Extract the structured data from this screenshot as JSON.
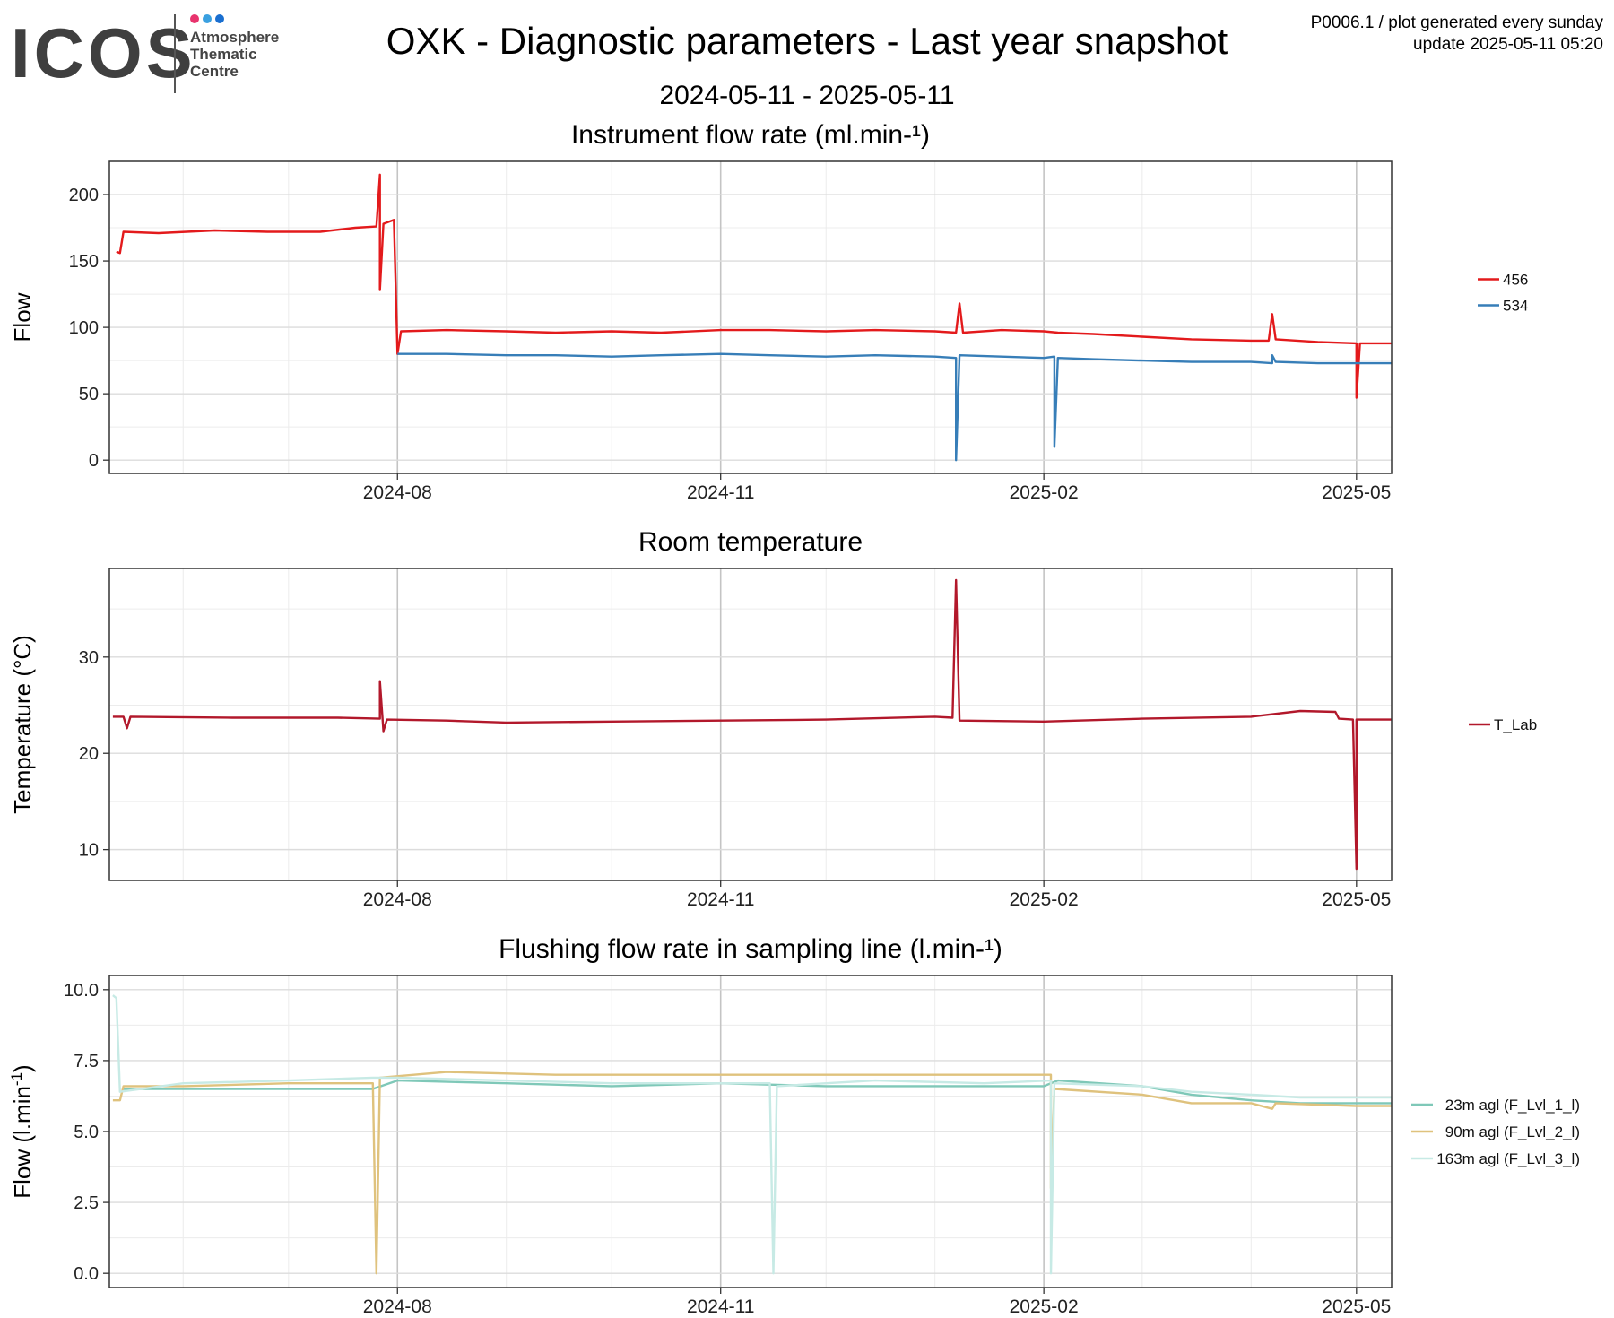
{
  "logo": {
    "word": "ICOS",
    "subtitle": [
      "Atmosphere",
      "Thematic",
      "Centre"
    ],
    "dot_colors": [
      "#e8336d",
      "#3aa0e0",
      "#1a6fd0"
    ]
  },
  "header": {
    "title": "OXK - Diagnostic parameters - Last year snapshot",
    "date_range": "2024-05-11 - 2025-05-11",
    "meta_line1": "P0006.1 / plot generated every sunday",
    "meta_line2": "update  2025-05-11 05:20"
  },
  "chart_data": [
    {
      "type": "line",
      "title": "Instrument flow rate (ml.min-¹)",
      "xlabel": "",
      "ylabel": "Flow",
      "xlim": [
        "2024-05-11",
        "2025-05-11"
      ],
      "ylim": [
        -10,
        225
      ],
      "yticks": [
        0,
        50,
        100,
        150,
        200
      ],
      "xticks": [
        "2024-08-01",
        "2024-11-01",
        "2025-02-01",
        "2025-05-01"
      ],
      "xtick_labels": [
        "2024-08",
        "2024-11",
        "2025-02",
        "2025-05"
      ],
      "grid": true,
      "legend": "right",
      "series": [
        {
          "name": "456",
          "color": "#e31a1c",
          "points": [
            [
              "2024-05-13",
              157
            ],
            [
              "2024-05-14",
              156
            ],
            [
              "2024-05-15",
              172
            ],
            [
              "2024-05-25",
              171
            ],
            [
              "2024-06-10",
              173
            ],
            [
              "2024-06-25",
              172
            ],
            [
              "2024-07-10",
              172
            ],
            [
              "2024-07-20",
              175
            ],
            [
              "2024-07-26",
              176
            ],
            [
              "2024-07-27",
              215
            ],
            [
              "2024-07-27",
              128
            ],
            [
              "2024-07-28",
              178
            ],
            [
              "2024-07-31",
              181
            ],
            [
              "2024-08-01",
              80
            ],
            [
              "2024-08-02",
              97
            ],
            [
              "2024-08-15",
              98
            ],
            [
              "2024-09-01",
              97
            ],
            [
              "2024-09-15",
              96
            ],
            [
              "2024-10-01",
              97
            ],
            [
              "2024-10-15",
              96
            ],
            [
              "2024-11-01",
              98
            ],
            [
              "2024-11-15",
              98
            ],
            [
              "2024-12-01",
              97
            ],
            [
              "2024-12-15",
              98
            ],
            [
              "2025-01-01",
              97
            ],
            [
              "2025-01-07",
              96
            ],
            [
              "2025-01-08",
              118
            ],
            [
              "2025-01-09",
              96
            ],
            [
              "2025-01-20",
              98
            ],
            [
              "2025-02-01",
              97
            ],
            [
              "2025-02-05",
              96
            ],
            [
              "2025-02-15",
              95
            ],
            [
              "2025-03-01",
              93
            ],
            [
              "2025-03-15",
              91
            ],
            [
              "2025-04-01",
              90
            ],
            [
              "2025-04-06",
              90
            ],
            [
              "2025-04-07",
              110
            ],
            [
              "2025-04-08",
              91
            ],
            [
              "2025-04-20",
              89
            ],
            [
              "2025-05-01",
              88
            ],
            [
              "2025-05-01",
              47
            ],
            [
              "2025-05-02",
              88
            ],
            [
              "2025-05-11",
              88
            ]
          ]
        },
        {
          "name": "534",
          "color": "#377eb8",
          "points": [
            [
              "2024-08-01",
              80
            ],
            [
              "2024-08-15",
              80
            ],
            [
              "2024-09-01",
              79
            ],
            [
              "2024-09-15",
              79
            ],
            [
              "2024-10-01",
              78
            ],
            [
              "2024-10-15",
              79
            ],
            [
              "2024-11-01",
              80
            ],
            [
              "2024-11-15",
              79
            ],
            [
              "2024-12-01",
              78
            ],
            [
              "2024-12-15",
              79
            ],
            [
              "2025-01-01",
              78
            ],
            [
              "2025-01-07",
              77
            ],
            [
              "2025-01-07",
              0
            ],
            [
              "2025-01-08",
              79
            ],
            [
              "2025-01-20",
              78
            ],
            [
              "2025-02-01",
              77
            ],
            [
              "2025-02-04",
              78
            ],
            [
              "2025-02-04",
              10
            ],
            [
              "2025-02-05",
              77
            ],
            [
              "2025-02-15",
              76
            ],
            [
              "2025-03-01",
              75
            ],
            [
              "2025-03-15",
              74
            ],
            [
              "2025-04-01",
              74
            ],
            [
              "2025-04-07",
              73
            ],
            [
              "2025-04-07",
              79
            ],
            [
              "2025-04-08",
              74
            ],
            [
              "2025-04-20",
              73
            ],
            [
              "2025-05-01",
              73
            ],
            [
              "2025-05-11",
              73
            ]
          ]
        }
      ]
    },
    {
      "type": "line",
      "title": "Room temperature",
      "xlabel": "",
      "ylabel": "Temperature (°C)",
      "xlim": [
        "2024-05-11",
        "2025-05-11"
      ],
      "ylim": [
        6.8,
        39.2
      ],
      "yticks": [
        10,
        20,
        30
      ],
      "xticks": [
        "2024-08-01",
        "2024-11-01",
        "2025-02-01",
        "2025-05-01"
      ],
      "xtick_labels": [
        "2024-08",
        "2024-11",
        "2025-02",
        "2025-05"
      ],
      "grid": true,
      "legend": "right",
      "series": [
        {
          "name": "T_Lab",
          "color": "#b2182b",
          "points": [
            [
              "2024-05-12",
              23.8
            ],
            [
              "2024-05-15",
              23.8
            ],
            [
              "2024-05-16",
              22.6
            ],
            [
              "2024-05-17",
              23.8
            ],
            [
              "2024-06-15",
              23.7
            ],
            [
              "2024-07-15",
              23.7
            ],
            [
              "2024-07-27",
              23.6
            ],
            [
              "2024-07-27",
              27.5
            ],
            [
              "2024-07-28",
              22.3
            ],
            [
              "2024-07-29",
              23.5
            ],
            [
              "2024-08-15",
              23.4
            ],
            [
              "2024-09-01",
              23.2
            ],
            [
              "2024-10-01",
              23.3
            ],
            [
              "2024-11-01",
              23.4
            ],
            [
              "2024-12-01",
              23.5
            ],
            [
              "2025-01-01",
              23.8
            ],
            [
              "2025-01-06",
              23.7
            ],
            [
              "2025-01-07",
              38.0
            ],
            [
              "2025-01-08",
              23.4
            ],
            [
              "2025-02-01",
              23.3
            ],
            [
              "2025-03-01",
              23.6
            ],
            [
              "2025-04-01",
              23.8
            ],
            [
              "2025-04-15",
              24.4
            ],
            [
              "2025-04-25",
              24.3
            ],
            [
              "2025-04-26",
              23.6
            ],
            [
              "2025-04-30",
              23.5
            ],
            [
              "2025-05-01",
              8.0
            ],
            [
              "2025-05-01",
              23.5
            ],
            [
              "2025-05-11",
              23.5
            ]
          ]
        }
      ]
    },
    {
      "type": "line",
      "title": "Flushing flow rate in sampling line (l.min-¹)",
      "xlabel": "",
      "ylabel": "Flow (l.min-1)",
      "xlim": [
        "2024-05-11",
        "2025-05-11"
      ],
      "ylim": [
        -0.5,
        10.5
      ],
      "yticks": [
        0.0,
        2.5,
        5.0,
        7.5,
        10.0
      ],
      "ytick_labels": [
        "0.0",
        "2.5",
        "5.0",
        "7.5",
        "10.0"
      ],
      "xticks": [
        "2024-08-01",
        "2024-11-01",
        "2025-02-01",
        "2025-05-01"
      ],
      "xtick_labels": [
        "2024-08",
        "2024-11",
        "2025-02",
        "2025-05"
      ],
      "grid": true,
      "legend": "right",
      "series": [
        {
          "name": "23m agl (F_Lvl_1_l)",
          "color": "#7fc8b8",
          "points": [
            [
              "2024-05-15",
              6.5
            ],
            [
              "2024-06-01",
              6.5
            ],
            [
              "2024-07-01",
              6.5
            ],
            [
              "2024-07-25",
              6.5
            ],
            [
              "2024-08-01",
              6.8
            ],
            [
              "2024-09-01",
              6.7
            ],
            [
              "2024-10-01",
              6.6
            ],
            [
              "2024-11-01",
              6.7
            ],
            [
              "2024-12-01",
              6.6
            ],
            [
              "2025-01-01",
              6.6
            ],
            [
              "2025-02-01",
              6.6
            ],
            [
              "2025-02-05",
              6.8
            ],
            [
              "2025-03-01",
              6.6
            ],
            [
              "2025-03-15",
              6.3
            ],
            [
              "2025-04-01",
              6.1
            ],
            [
              "2025-04-15",
              6.0
            ],
            [
              "2025-05-01",
              6.0
            ],
            [
              "2025-05-11",
              6.0
            ]
          ]
        },
        {
          "name": "90m agl (F_Lvl_2_l)",
          "color": "#dfc27d",
          "points": [
            [
              "2024-05-12",
              6.1
            ],
            [
              "2024-05-14",
              6.1
            ],
            [
              "2024-05-15",
              6.6
            ],
            [
              "2024-06-01",
              6.6
            ],
            [
              "2024-07-01",
              6.7
            ],
            [
              "2024-07-25",
              6.7
            ],
            [
              "2024-07-26",
              0.0
            ],
            [
              "2024-07-27",
              6.9
            ],
            [
              "2024-08-15",
              7.1
            ],
            [
              "2024-09-15",
              7.0
            ],
            [
              "2024-10-15",
              7.0
            ],
            [
              "2024-11-15",
              7.0
            ],
            [
              "2024-12-15",
              7.0
            ],
            [
              "2025-01-15",
              7.0
            ],
            [
              "2025-02-03",
              7.0
            ],
            [
              "2025-02-03",
              3.0
            ],
            [
              "2025-02-04",
              6.5
            ],
            [
              "2025-03-01",
              6.3
            ],
            [
              "2025-03-15",
              6.0
            ],
            [
              "2025-04-01",
              6.0
            ],
            [
              "2025-04-07",
              5.8
            ],
            [
              "2025-04-08",
              6.0
            ],
            [
              "2025-05-01",
              5.9
            ],
            [
              "2025-05-11",
              5.9
            ]
          ]
        },
        {
          "name": "163m agl (F_Lvl_3_l)",
          "color": "#c7eae5",
          "points": [
            [
              "2024-05-12",
              9.8
            ],
            [
              "2024-05-13",
              9.7
            ],
            [
              "2024-05-14",
              6.4
            ],
            [
              "2024-06-01",
              6.7
            ],
            [
              "2024-07-01",
              6.8
            ],
            [
              "2024-07-25",
              6.9
            ],
            [
              "2024-08-01",
              6.9
            ],
            [
              "2024-09-01",
              6.8
            ],
            [
              "2024-10-01",
              6.7
            ],
            [
              "2024-11-15",
              6.7
            ],
            [
              "2024-11-16",
              0.0
            ],
            [
              "2024-11-17",
              6.6
            ],
            [
              "2024-12-15",
              6.8
            ],
            [
              "2025-01-15",
              6.7
            ],
            [
              "2025-02-03",
              6.8
            ],
            [
              "2025-02-03",
              0.0
            ],
            [
              "2025-02-04",
              6.7
            ],
            [
              "2025-03-01",
              6.6
            ],
            [
              "2025-03-15",
              6.4
            ],
            [
              "2025-04-01",
              6.3
            ],
            [
              "2025-04-15",
              6.2
            ],
            [
              "2025-05-01",
              6.2
            ],
            [
              "2025-05-11",
              6.2
            ]
          ]
        }
      ]
    }
  ]
}
